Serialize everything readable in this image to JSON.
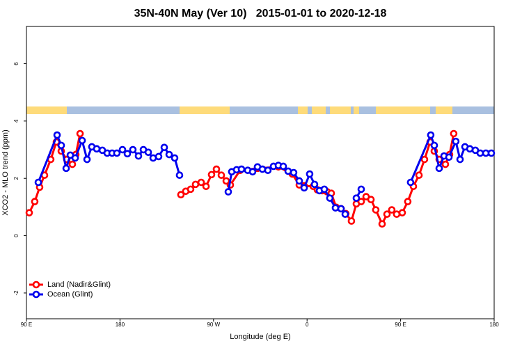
{
  "chart_data": {
    "type": "line",
    "title": "35N-40N May (Ver 10)   2015-01-01 to 2020-12-18",
    "xlabel": "Longitude (deg E)",
    "ylabel": "XCO2 - MLO trend (ppm)",
    "xlim": [
      90,
      540
    ],
    "xticks": [
      {
        "value": 90,
        "label": "90 E"
      },
      180,
      {
        "value": 270,
        "label": "90 W"
      },
      {
        "value": 360,
        "label": "0"
      },
      {
        "value": 450,
        "label": "90 E"
      },
      {
        "value": 540,
        "label": "180"
      }
    ],
    "ylim": [
      -2.9,
      7.3
    ],
    "yticks": [
      -2,
      0,
      2,
      4,
      6
    ],
    "legend": "bottomleft",
    "series": [
      {
        "name": "Land (Nadir&Glint)",
        "color": "#ff0000",
        "x": [
          92.7,
          98.0,
          102.7,
          107.4,
          113.4,
          118.8,
          123.5,
          128.8,
          134.2,
          137.5,
          141.6,
          null,
          238.6,
          243.3,
          248.0,
          252.7,
          258.1,
          262.8,
          268.1,
          272.8,
          277.5,
          282.2,
          286.2,
          295.6,
          312.3,
          332.4,
          345.8,
          352.5,
          357.2,
          365.9,
          369.9,
          374.6,
          379.3,
          383.3,
          388.0,
          392.7,
          397.3,
          402.7,
          407.4,
          412.1,
          416.8,
          421.5,
          426.1,
          432.2,
          436.9,
          441.5,
          446.2,
          451.6,
          456.9,
          462.3,
          467.7,
          473.0,
          478.4,
          482.4,
          487.1,
          493.1,
          497.1,
          501.1
        ],
        "values": [
          0.8,
          1.19,
          1.69,
          2.11,
          2.66,
          3.27,
          2.95,
          2.66,
          2.49,
          2.83,
          3.56,
          null,
          1.43,
          1.55,
          1.62,
          1.79,
          1.86,
          1.72,
          2.13,
          2.32,
          2.11,
          1.91,
          1.77,
          2.28,
          2.35,
          2.4,
          2.15,
          1.77,
          1.74,
          1.72,
          1.6,
          1.57,
          1.53,
          1.48,
          0.99,
          0.94,
          0.77,
          0.51,
          1.11,
          1.19,
          1.36,
          1.26,
          0.9,
          0.41,
          0.75,
          0.9,
          0.75,
          0.8,
          1.19,
          1.72,
          2.11,
          2.66,
          3.27,
          2.95,
          2.66,
          2.49,
          2.83,
          3.56
        ]
      },
      {
        "name": "Ocean (Glint)",
        "color": "#0000ee",
        "x": [
          101.4,
          119.5,
          123.5,
          128.2,
          132.2,
          136.9,
          143.6,
          148.3,
          152.9,
          157.6,
          163.0,
          167.7,
          172.4,
          177.0,
          182.4,
          187.1,
          192.4,
          197.8,
          202.5,
          207.2,
          211.9,
          217.2,
          222.6,
          227.3,
          232.6,
          237.3,
          null,
          284.2,
          287.5,
          292.2,
          296.9,
          302.9,
          307.6,
          312.3,
          317.0,
          322.3,
          327.7,
          332.4,
          337.1,
          341.8,
          347.1,
          352.5,
          357.2,
          362.5,
          367.2,
          371.9,
          376.6,
          381.9,
          387.3,
          392.7,
          396.7,
          null,
          407.4,
          412.1,
          null,
          459.6,
          479.0,
          482.4,
          487.1,
          491.8,
          496.5,
          503.1,
          507.2,
          511.9,
          516.6,
          521.9,
          526.6,
          532.0,
          537.3
        ],
        "values": [
          1.86,
          3.51,
          3.15,
          2.35,
          2.81,
          2.71,
          3.32,
          2.66,
          3.1,
          3.03,
          2.98,
          2.88,
          2.88,
          2.88,
          3.0,
          2.86,
          3.0,
          2.78,
          3.0,
          2.91,
          2.71,
          2.76,
          3.08,
          2.83,
          2.71,
          2.11,
          null,
          1.53,
          2.23,
          2.3,
          2.32,
          2.28,
          2.23,
          2.4,
          2.32,
          2.28,
          2.42,
          2.45,
          2.42,
          2.25,
          2.2,
          1.91,
          1.67,
          2.15,
          1.79,
          1.57,
          1.62,
          1.31,
          0.97,
          0.94,
          0.75,
          null,
          1.31,
          1.62,
          null,
          1.86,
          3.51,
          3.15,
          2.35,
          2.78,
          2.74,
          3.29,
          2.66,
          3.1,
          3.03,
          2.98,
          2.88,
          2.88,
          2.88
        ]
      }
    ]
  }
}
